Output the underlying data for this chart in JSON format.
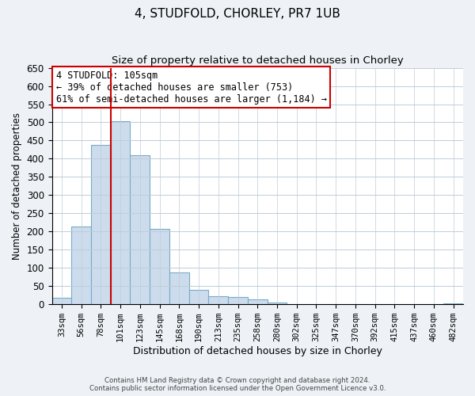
{
  "title": "4, STUDFOLD, CHORLEY, PR7 1UB",
  "subtitle": "Size of property relative to detached houses in Chorley",
  "xlabel": "Distribution of detached houses by size in Chorley",
  "ylabel": "Number of detached properties",
  "bin_labels": [
    "33sqm",
    "56sqm",
    "78sqm",
    "101sqm",
    "123sqm",
    "145sqm",
    "168sqm",
    "190sqm",
    "213sqm",
    "235sqm",
    "258sqm",
    "280sqm",
    "302sqm",
    "325sqm",
    "347sqm",
    "370sqm",
    "392sqm",
    "415sqm",
    "437sqm",
    "460sqm",
    "482sqm"
  ],
  "bar_heights": [
    18,
    213,
    437,
    503,
    410,
    207,
    88,
    40,
    22,
    19,
    13,
    5,
    0,
    0,
    0,
    0,
    0,
    0,
    0,
    0,
    3
  ],
  "bar_color": "#ccdcec",
  "bar_edge_color": "#7aaac8",
  "property_line_x": 2.5,
  "property_line_color": "#cc0000",
  "ylim": [
    0,
    650
  ],
  "yticks": [
    0,
    50,
    100,
    150,
    200,
    250,
    300,
    350,
    400,
    450,
    500,
    550,
    600,
    650
  ],
  "annotation_title": "4 STUDFOLD: 105sqm",
  "annotation_line1": "← 39% of detached houses are smaller (753)",
  "annotation_line2": "61% of semi-detached houses are larger (1,184) →",
  "annotation_box_color": "#ffffff",
  "annotation_box_edge": "#cc0000",
  "footnote1": "Contains HM Land Registry data © Crown copyright and database right 2024.",
  "footnote2": "Contains public sector information licensed under the Open Government Licence v3.0.",
  "background_color": "#eef2f6",
  "plot_background_color": "#ffffff",
  "grid_color": "#c0ccd8"
}
